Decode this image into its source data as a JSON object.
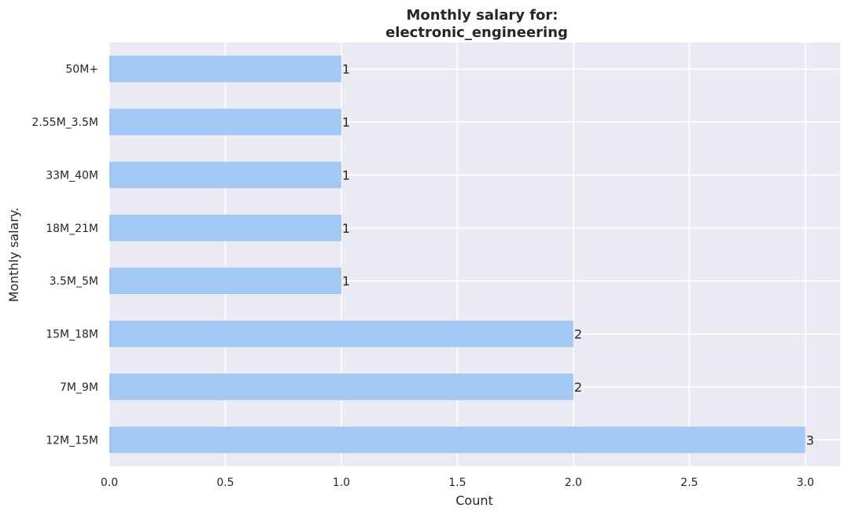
{
  "chart_data": {
    "type": "bar",
    "orientation": "horizontal",
    "title_line1": "Monthly salary for:",
    "title_line2": "electronic_engineering",
    "xlabel": "Count",
    "ylabel": "Monthly salary.",
    "xlim": [
      0,
      3.15
    ],
    "xticks": [
      0.0,
      0.5,
      1.0,
      1.5,
      2.0,
      2.5,
      3.0
    ],
    "xtick_labels": [
      "0.0",
      "0.5",
      "1.0",
      "1.5",
      "2.0",
      "2.5",
      "3.0"
    ],
    "categories": [
      "50M+",
      "2.55M_3.5M",
      "33M_40M",
      "18M_21M",
      "3.5M_5M",
      "15M_18M",
      "7M_9M",
      "12M_15M"
    ],
    "values": [
      1,
      1,
      1,
      1,
      1,
      2,
      2,
      3
    ],
    "data_labels": [
      "1",
      "1",
      "1",
      "1",
      "1",
      "2",
      "2",
      "3"
    ],
    "grid": true,
    "colors": {
      "bar": "#a1c9f4",
      "plot_background": "#eaeaf2",
      "grid": "#ffffff",
      "text": "#262626"
    }
  }
}
